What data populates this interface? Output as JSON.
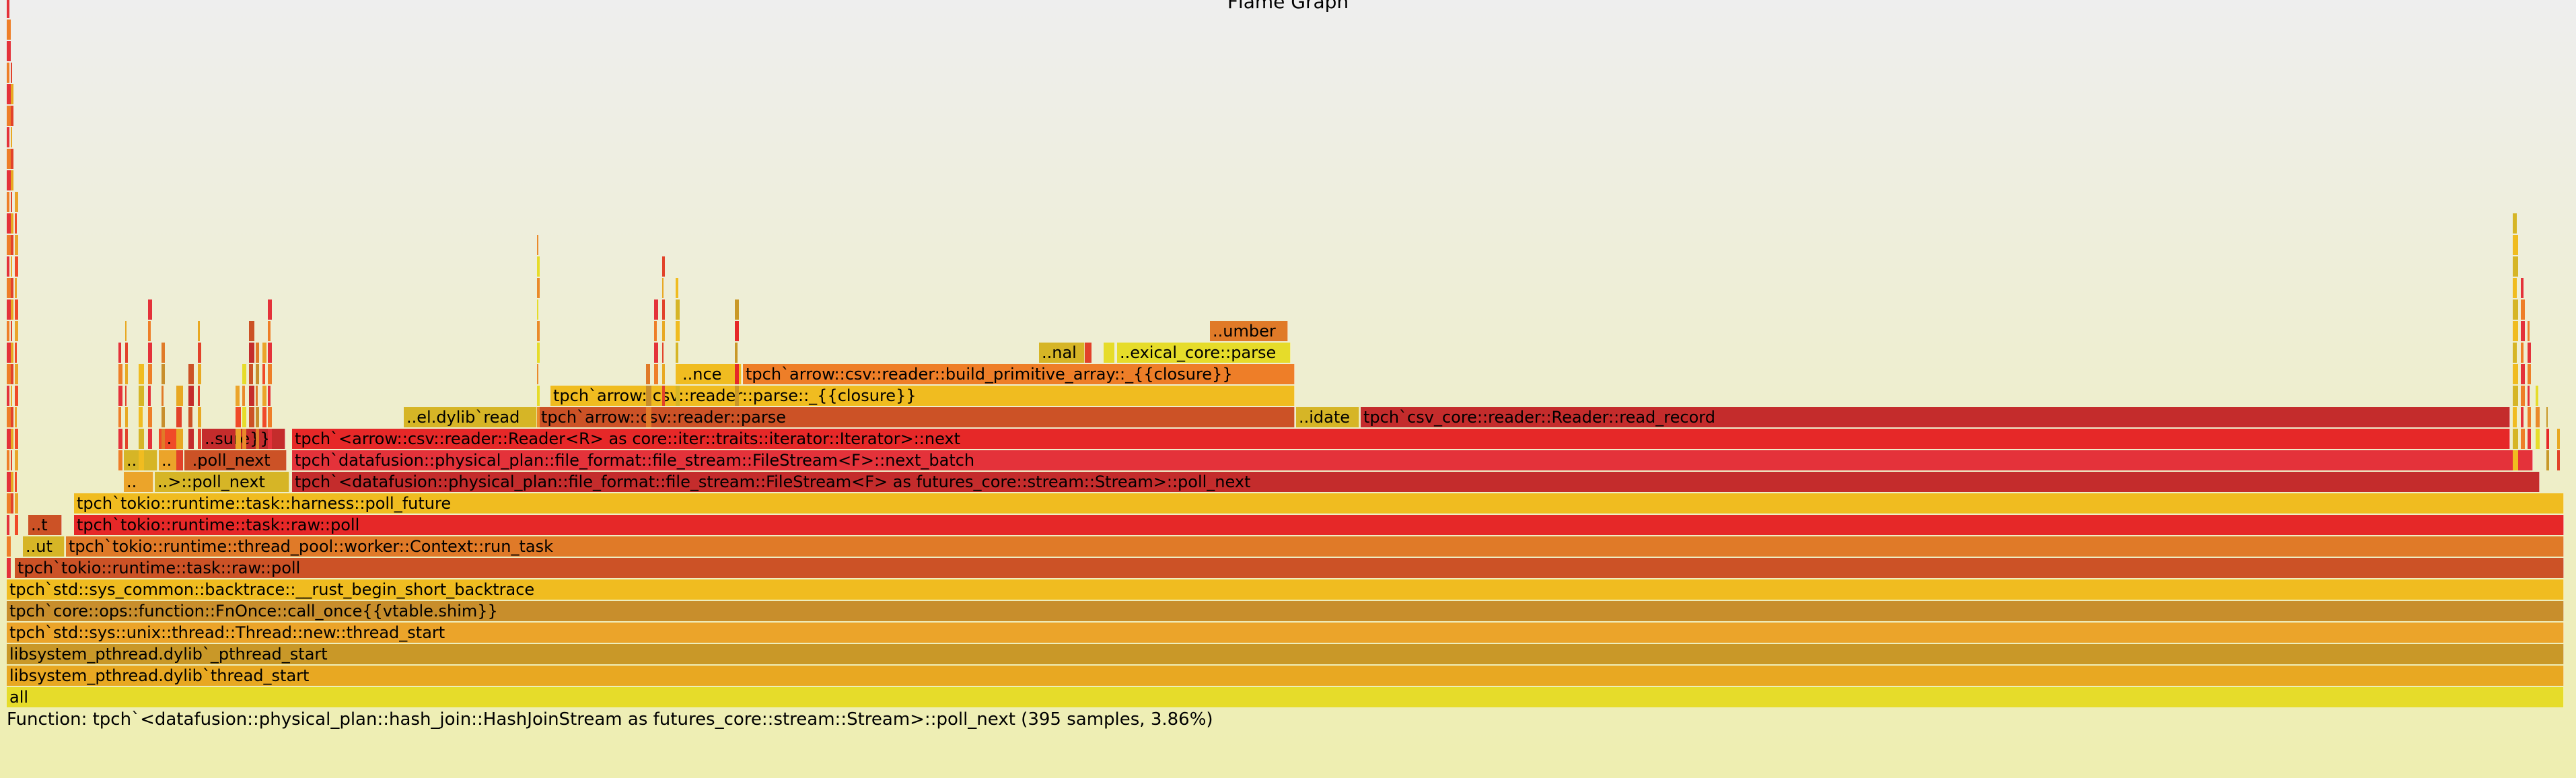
{
  "title": "Flame Graph",
  "details": "Function: tpch`<datafusion::physical_plan::hash_join::HashJoinStream as futures_core::stream::Stream>::poll_next (395 samples, 3.86%)",
  "colors": [
    "#e6dc2a",
    "#e8a822",
    "#f0bc20",
    "#eba42a",
    "#c99828",
    "#cc5226",
    "#e4323a",
    "#e07a28",
    "#ea8a2a",
    "#e2422a",
    "#d6b526",
    "#f04a28",
    "#e62828",
    "#c42c2c",
    "#ee7e28",
    "#c88e2c"
  ],
  "frames": [
    {
      "label": "all"
    },
    {
      "label": "libsystem_pthread.dylib`thread_start"
    },
    {
      "label": "libsystem_pthread.dylib`_pthread_start"
    },
    {
      "label": "tpch`std::sys::unix::thread::Thread::new::thread_start"
    },
    {
      "label": "tpch`core::ops::function::FnOnce::call_once{{vtable.shim}}"
    },
    {
      "label": "tpch`std::sys_common::backtrace::__rust_begin_short_backtrace"
    },
    {
      "label": "tpch`tokio::runtime::task::raw::poll"
    },
    {
      "label": "..ut"
    },
    {
      "label": "tpch`tokio::runtime::thread_pool::worker::Context::run_task"
    },
    {
      "label": "..t"
    },
    {
      "label": "tpch`tokio::runtime::task::raw::poll"
    },
    {
      "label": "tpch`tokio::runtime::task::harness::poll_future"
    },
    {
      "label": ".."
    },
    {
      "label": "..>::poll_next"
    },
    {
      "label": "tpch`<datafusion::physical_plan::file_format::file_stream::FileStream<F> as futures_core::stream::Stream>::poll_next"
    },
    {
      "label": ".."
    },
    {
      "label": ".."
    },
    {
      "label": "..poll_next"
    },
    {
      "label": "tpch`datafusion::physical_plan::file_format::file_stream::FileStream<F>::next_batch"
    },
    {
      "label": ".."
    },
    {
      "label": "..sure}}"
    },
    {
      "label": "tpch`<arrow::csv::reader::Reader<R> as core::iter::traits::iterator::Iterator>::next"
    },
    {
      "label": "..el.dylib`read"
    },
    {
      "label": "tpch`arrow::csv::reader::parse"
    },
    {
      "label": "..idate"
    },
    {
      "label": "tpch`csv_core::reader::Reader::read_record"
    },
    {
      "label": "tpch`arrow::csv::reader::parse::_{{closure}}"
    },
    {
      "label": "..nce"
    },
    {
      "label": "tpch`arrow::csv::reader::build_primitive_array::_{{closure}}"
    },
    {
      "label": "..nal"
    },
    {
      "label": "..exical_core::parse"
    },
    {
      "label": "..umber"
    }
  ]
}
